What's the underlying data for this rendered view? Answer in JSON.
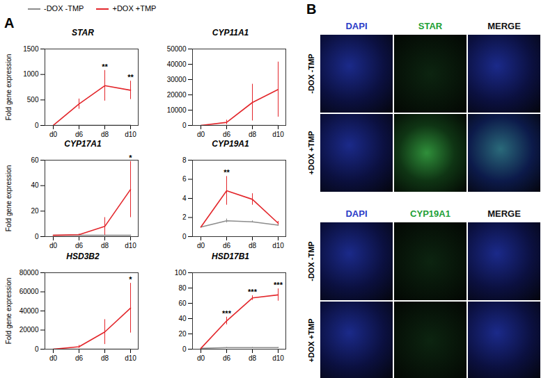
{
  "chart_data": [
    {
      "type": "line",
      "title": "STAR",
      "y_label": "Fold gene expression",
      "categories": [
        "d0",
        "d6",
        "d8",
        "d10"
      ],
      "series": [
        {
          "name": "-DOX -TMP",
          "color": "#8c8c8c",
          "values": [
            1,
            2,
            2,
            2
          ],
          "error": [
            0,
            1,
            1,
            1
          ]
        },
        {
          "name": "+DOX +TMP",
          "color": "#e3262b",
          "values": [
            1,
            420,
            780,
            690
          ],
          "error": [
            0,
            100,
            300,
            180
          ]
        }
      ],
      "annotations": [
        {
          "x": "d8",
          "text": "**"
        },
        {
          "x": "d10",
          "text": "**"
        }
      ],
      "ylim": [
        0,
        1500
      ],
      "yticks": [
        0,
        500,
        1000,
        1500
      ]
    },
    {
      "type": "line",
      "title": "CYP11A1",
      "categories": [
        "d0",
        "d6",
        "d8",
        "d10"
      ],
      "series": [
        {
          "name": "-DOX -TMP",
          "color": "#8c8c8c",
          "values": [
            1,
            2,
            2,
            2
          ],
          "error": [
            0,
            1,
            1,
            1
          ]
        },
        {
          "name": "+DOX +TMP",
          "color": "#e3262b",
          "values": [
            1,
            2000,
            15000,
            23500
          ],
          "error": [
            0,
            1500,
            12000,
            18000
          ]
        }
      ],
      "annotations": [],
      "ylim": [
        0,
        50000
      ],
      "yticks": [
        0,
        10000,
        20000,
        30000,
        40000,
        50000
      ]
    },
    {
      "type": "line",
      "title": "CYP17A1",
      "y_label": "Fold gene expression",
      "categories": [
        "d0",
        "d6",
        "d8",
        "d10"
      ],
      "series": [
        {
          "name": "-DOX -TMP",
          "color": "#8c8c8c",
          "values": [
            1,
            1,
            1,
            1
          ],
          "error": [
            0,
            0.2,
            0.2,
            0.2
          ]
        },
        {
          "name": "+DOX +TMP",
          "color": "#e3262b",
          "values": [
            1,
            1.5,
            8,
            37
          ],
          "error": [
            0,
            0.5,
            7,
            22
          ]
        }
      ],
      "annotations": [
        {
          "x": "d10",
          "text": "*"
        }
      ],
      "ylim": [
        0,
        60
      ],
      "yticks": [
        0,
        20,
        40,
        60
      ]
    },
    {
      "type": "line",
      "title": "CYP19A1",
      "categories": [
        "d0",
        "d6",
        "d8",
        "d10"
      ],
      "series": [
        {
          "name": "-DOX -TMP",
          "color": "#8c8c8c",
          "values": [
            1,
            1.65,
            1.55,
            1.2
          ],
          "error": [
            0,
            0.2,
            0.1,
            0.1
          ]
        },
        {
          "name": "+DOX +TMP",
          "color": "#e3262b",
          "values": [
            1,
            4.8,
            3.9,
            1.4
          ],
          "error": [
            0,
            1.5,
            0.6,
            0.2
          ]
        }
      ],
      "annotations": [
        {
          "x": "d6",
          "text": "**"
        }
      ],
      "ylim": [
        0,
        8
      ],
      "yticks": [
        0,
        2,
        4,
        6,
        8
      ]
    },
    {
      "type": "line",
      "title": "HSD3B2",
      "y_label": "Fold gene expression",
      "categories": [
        "d0",
        "d6",
        "d8",
        "d10"
      ],
      "series": [
        {
          "name": "-DOX -TMP",
          "color": "#8c8c8c",
          "values": [
            1,
            2,
            2,
            2
          ],
          "error": [
            0,
            1,
            1,
            1
          ]
        },
        {
          "name": "+DOX +TMP",
          "color": "#e3262b",
          "values": [
            1,
            2500,
            18000,
            43000
          ],
          "error": [
            0,
            1500,
            13000,
            26000
          ]
        }
      ],
      "annotations": [
        {
          "x": "d10",
          "text": "*"
        }
      ],
      "ylim": [
        0,
        80000
      ],
      "yticks": [
        0,
        20000,
        40000,
        60000,
        80000
      ]
    },
    {
      "type": "line",
      "title": "HSD17B1",
      "categories": [
        "d0",
        "d6",
        "d8",
        "d10"
      ],
      "series": [
        {
          "name": "-DOX -TMP",
          "color": "#8c8c8c",
          "values": [
            1,
            2,
            2,
            2
          ],
          "error": [
            0,
            0.5,
            0.5,
            0.5
          ]
        },
        {
          "name": "+DOX +TMP",
          "color": "#e3262b",
          "values": [
            1,
            37,
            67,
            71
          ],
          "error": [
            0,
            5,
            3,
            8
          ]
        }
      ],
      "annotations": [
        {
          "x": "d6",
          "text": "***"
        },
        {
          "x": "d8",
          "text": "***"
        },
        {
          "x": "d10",
          "text": "***"
        }
      ],
      "ylim": [
        0,
        100
      ],
      "yticks": [
        0,
        20,
        40,
        60,
        80,
        100
      ]
    }
  ],
  "figure": {
    "panel_a_label": "A",
    "panel_b": {
      "label": "B",
      "groups": [
        {
          "channels": [
            {
              "text": "DAPI",
              "color": "#2a3cc8"
            },
            {
              "text": "STAR",
              "color": "#22a036"
            },
            {
              "text": "MERGE",
              "color": "#111111"
            }
          ],
          "rows": [
            "-DOX -TMP",
            "+DOX +TMP"
          ]
        },
        {
          "channels": [
            {
              "text": "DAPI",
              "color": "#2a3cc8"
            },
            {
              "text": "CYP19A1",
              "color": "#22a036"
            },
            {
              "text": "MERGE",
              "color": "#111111"
            }
          ],
          "rows": [
            "-DOX -TMP",
            "+DOX +TMP"
          ]
        }
      ]
    }
  }
}
